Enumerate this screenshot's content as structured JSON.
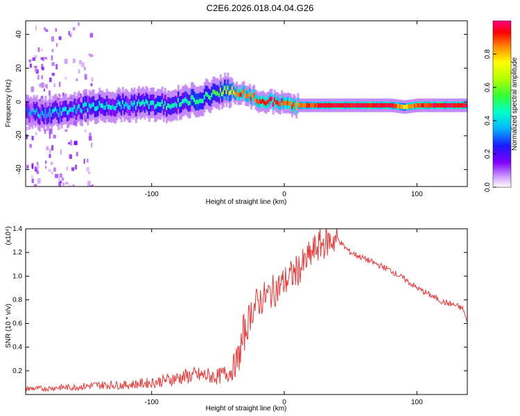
{
  "title": "C2E6.2026.018.04.04.G26",
  "chart_data": [
    {
      "type": "heatmap",
      "title": "C2E6.2026.018.04.04.G26",
      "xlabel": "Height of straight line (km)",
      "ylabel": "Frequency (Hz)",
      "xlim": [
        -195,
        138
      ],
      "ylim": [
        -50,
        48
      ],
      "xticks": [
        -100,
        0,
        100
      ],
      "xtick_labels": [
        "-100",
        "0",
        "100"
      ],
      "yticks": [
        -40,
        -20,
        0,
        20,
        40
      ],
      "ytick_labels": [
        "-40",
        "-20",
        "0",
        "20",
        "40"
      ],
      "colorbar": {
        "label": "Normalized spectral amplitude",
        "range": [
          0,
          1
        ],
        "ticks": [
          0.0,
          0.2,
          0.4,
          0.6,
          0.8
        ],
        "tick_labels": [
          "0.0",
          "0.2",
          "0.4",
          "0.6",
          "0.8"
        ]
      },
      "ridge": {
        "x": [
          -195,
          -180,
          -165,
          -150,
          -135,
          -120,
          -105,
          -90,
          -75,
          -60,
          -50,
          -42,
          -35,
          -28,
          -20,
          -10,
          0,
          10,
          20,
          40,
          60,
          80,
          90,
          100,
          120,
          138
        ],
        "freq_hz": [
          -6,
          -7,
          -5,
          -3,
          -2,
          -2,
          -1,
          -2,
          0,
          3,
          6,
          7,
          5,
          4,
          1,
          0,
          -1,
          -2,
          -2,
          -2,
          -2,
          -2,
          -3,
          -2,
          -2,
          -2
        ],
        "amplitude": [
          0.3,
          0.38,
          0.4,
          0.42,
          0.42,
          0.4,
          0.45,
          0.45,
          0.5,
          0.5,
          0.55,
          0.7,
          0.9,
          0.85,
          0.9,
          0.95,
          0.9,
          0.85,
          0.9,
          0.95,
          0.95,
          0.95,
          0.75,
          0.9,
          0.95,
          0.95
        ]
      }
    },
    {
      "type": "line",
      "xlabel": "Height of straight line (km)",
      "ylabel": "SNR (10 * v/v)",
      "y_scale_label": "(x10⁴)",
      "xlim": [
        -195,
        138
      ],
      "ylim": [
        0,
        1.4
      ],
      "xticks": [
        -100,
        0,
        100
      ],
      "xtick_labels": [
        "-100",
        "0",
        "100"
      ],
      "yticks": [
        0.2,
        0.4,
        0.6,
        0.8,
        1.0,
        1.2,
        1.4
      ],
      "ytick_labels": [
        "0.2",
        "0.4",
        "0.6",
        "0.8",
        "1.0",
        "1.2",
        "1.4"
      ],
      "series": [
        {
          "name": "SNR",
          "color": "#ee3333",
          "x": [
            -195,
            -180,
            -170,
            -160,
            -150,
            -140,
            -130,
            -120,
            -110,
            -100,
            -90,
            -80,
            -70,
            -60,
            -50,
            -40,
            -35,
            -30,
            -25,
            -20,
            -15,
            -10,
            -5,
            0,
            5,
            10,
            15,
            20,
            25,
            30,
            35,
            40,
            45,
            50,
            60,
            70,
            80,
            90,
            100,
            110,
            120,
            130,
            135,
            138
          ],
          "values": [
            0.05,
            0.05,
            0.06,
            0.06,
            0.07,
            0.08,
            0.08,
            0.08,
            0.09,
            0.1,
            0.12,
            0.14,
            0.16,
            0.16,
            0.15,
            0.2,
            0.3,
            0.5,
            0.7,
            0.78,
            0.82,
            0.86,
            0.9,
            0.95,
            1.0,
            1.05,
            1.1,
            1.18,
            1.25,
            1.28,
            1.3,
            1.32,
            1.25,
            1.2,
            1.15,
            1.1,
            1.05,
            0.98,
            0.9,
            0.84,
            0.78,
            0.75,
            0.72,
            0.6
          ]
        }
      ]
    }
  ]
}
